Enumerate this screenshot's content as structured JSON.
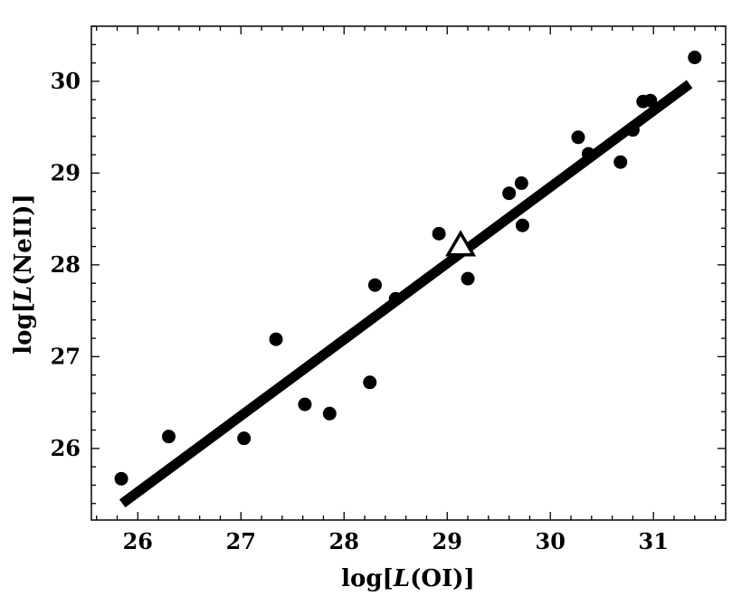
{
  "chart_data": {
    "type": "scatter",
    "title": "",
    "xlabel": {
      "prefix": "log[",
      "var": "L",
      "suffix": "(OI)]"
    },
    "ylabel": {
      "prefix": "log[",
      "var": "L",
      "suffix": "(NeII)]"
    },
    "xlim": [
      25.55,
      31.7
    ],
    "ylim": [
      25.22,
      30.6
    ],
    "x_ticks": [
      "26",
      "27",
      "28",
      "29",
      "30",
      "31"
    ],
    "y_ticks": [
      "26",
      "27",
      "28",
      "29",
      "30"
    ],
    "grid": false,
    "legend": "none",
    "series": [
      {
        "marker": "filled-circle",
        "color": "#000000",
        "points": [
          [
            25.84,
            25.67
          ],
          [
            26.3,
            26.13
          ],
          [
            27.03,
            26.11
          ],
          [
            27.34,
            27.19
          ],
          [
            27.62,
            26.48
          ],
          [
            27.86,
            26.38
          ],
          [
            28.25,
            26.72
          ],
          [
            28.3,
            27.78
          ],
          [
            28.5,
            27.63
          ],
          [
            28.92,
            28.34
          ],
          [
            29.2,
            27.85
          ],
          [
            29.6,
            28.78
          ],
          [
            29.72,
            28.89
          ],
          [
            29.73,
            28.43
          ],
          [
            30.27,
            29.39
          ],
          [
            30.37,
            29.21
          ],
          [
            30.68,
            29.12
          ],
          [
            30.8,
            29.47
          ],
          [
            30.9,
            29.78
          ],
          [
            30.97,
            29.79
          ],
          [
            31.4,
            30.26
          ]
        ]
      },
      {
        "marker": "open-triangle",
        "color": "#000000",
        "points": [
          [
            29.13,
            28.2
          ]
        ]
      }
    ],
    "fit_line": {
      "color": "#000000",
      "start": [
        25.85,
        25.4
      ],
      "end": [
        31.35,
        29.97
      ]
    }
  }
}
